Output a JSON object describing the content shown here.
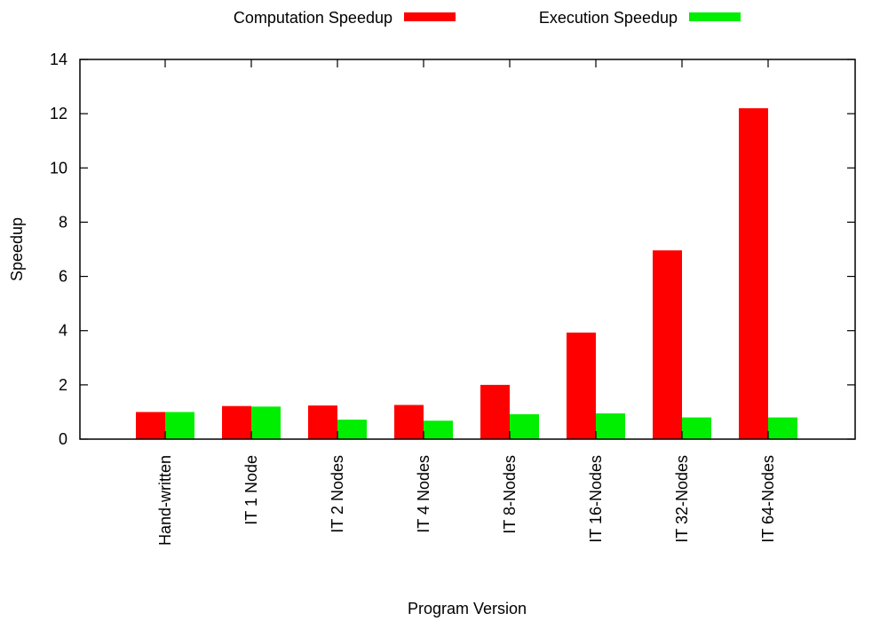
{
  "chart_data": {
    "type": "bar",
    "title": "",
    "xlabel": "Program Version",
    "ylabel": "Speedup",
    "ylim": [
      0,
      14
    ],
    "yticks": [
      0,
      2,
      4,
      6,
      8,
      10,
      12,
      14
    ],
    "grid": false,
    "legend_position": "top",
    "categories": [
      "Hand-written",
      "IT 1 Node",
      "IT 2 Nodes",
      "IT 4 Nodes",
      "IT 8-Nodes",
      "IT 16-Nodes",
      "IT 32-Nodes",
      "IT 64-Nodes"
    ],
    "series": [
      {
        "name": "Computation Speedup",
        "color": "#ff0000",
        "values": [
          1.0,
          1.22,
          1.24,
          1.26,
          2.0,
          3.93,
          6.96,
          12.2
        ]
      },
      {
        "name": "Execution Speedup",
        "color": "#00ee00",
        "values": [
          1.0,
          1.2,
          0.72,
          0.68,
          0.92,
          0.95,
          0.8,
          0.8
        ]
      }
    ]
  }
}
